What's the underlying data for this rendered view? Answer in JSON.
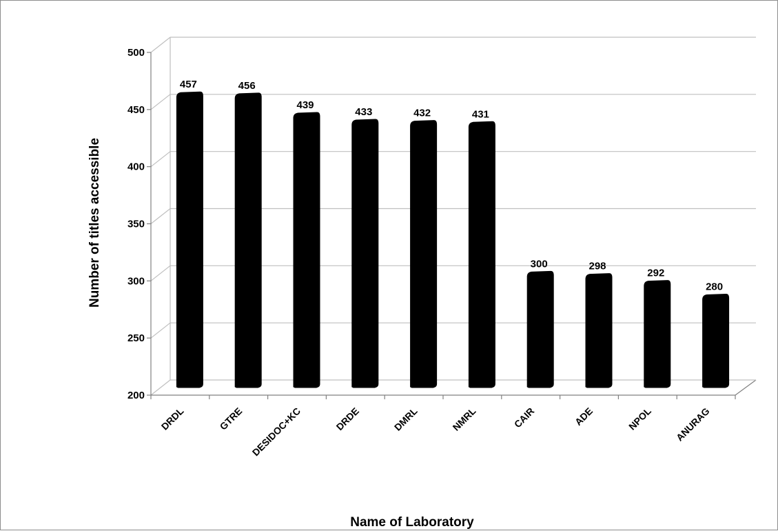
{
  "chart_data": {
    "type": "bar",
    "title": "",
    "xlabel": "Name of Laboratory",
    "ylabel": "Number of titles accessible",
    "ylim": [
      200,
      500
    ],
    "yticks": [
      200,
      250,
      300,
      350,
      400,
      450,
      500
    ],
    "categories": [
      "DRDL",
      "GTRE",
      "DESIDOC+KC",
      "DRDE",
      "DMRL",
      "NMRL",
      "CAIR",
      "ADE",
      "NPOL",
      "ANURAG"
    ],
    "values": [
      457,
      456,
      439,
      433,
      432,
      431,
      300,
      298,
      292,
      280
    ],
    "data_labels": [
      "457",
      "456",
      "439",
      "433",
      "432",
      "431",
      "300",
      "298",
      "292",
      "280"
    ],
    "grid": true,
    "legend": "none",
    "colors": {
      "bar": "#000000",
      "grid": "#bfbfbf",
      "axis": "#808080"
    }
  }
}
